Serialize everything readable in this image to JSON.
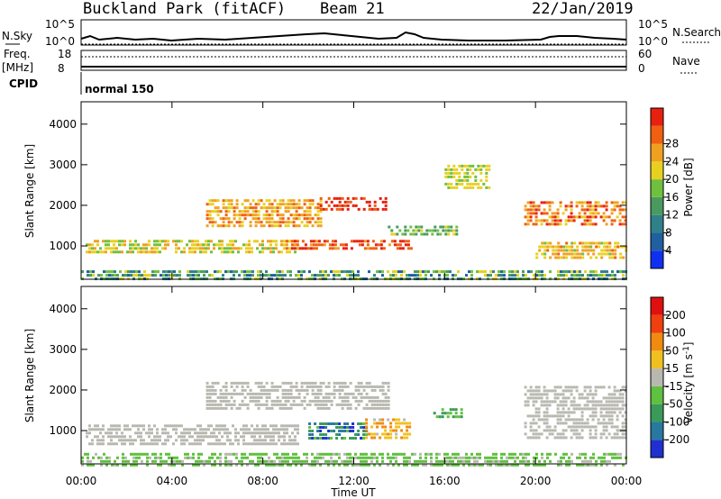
{
  "header": {
    "title": "Buckland Park (fitACF)",
    "beam": "Beam 21",
    "date": "22/Jan/2019"
  },
  "strips": {
    "nsky_label": "N.Sky",
    "nsearch_label": "N.Search",
    "nsky_ticks": [
      "10^5",
      "10^0"
    ],
    "nsearch_ticks": [
      "10^5",
      "10^0"
    ],
    "freq_label": "Freq.",
    "freq_unit": "[MHz]",
    "freq_ticks": [
      "18",
      "8"
    ],
    "nave_label": "Nave",
    "nave_ticks": [
      "60",
      "0"
    ],
    "cpid_label": "CPID",
    "cpid_value": "normal 150"
  },
  "axes": {
    "ylabel": "Slant Range [km]",
    "xlabel": "Time UT",
    "y_ticks": [
      "1000",
      "2000",
      "3000",
      "4000"
    ],
    "x_ticks": [
      "00:00",
      "04:00",
      "08:00",
      "12:00",
      "16:00",
      "20:00",
      "00:00"
    ]
  },
  "power_scale": {
    "label": "Power [dB]",
    "ticks": [
      "4",
      "8",
      "12",
      "16",
      "20",
      "24",
      "28"
    ],
    "colors": [
      "#1030f0",
      "#2060a0",
      "#30808a",
      "#4a9a60",
      "#70c040",
      "#e8d020",
      "#f0a020",
      "#f06010",
      "#e82010"
    ]
  },
  "velocity_scale": {
    "label": "Velocity [m s^-1]",
    "ticks": [
      "200",
      "100",
      "50",
      "15",
      "-15",
      "-50",
      "-100",
      "-200"
    ],
    "colors": [
      "#2030d0",
      "#2878a0",
      "#3a9a5a",
      "#60c040",
      "#b8b8b0",
      "#f0c020",
      "#f08a10",
      "#f04010",
      "#e01010"
    ]
  },
  "chart_data": [
    {
      "type": "heatmap",
      "title": "Power [dB]",
      "xlabel": "Time UT",
      "ylabel": "Slant Range [km]",
      "xlim": [
        0,
        24
      ],
      "ylim": [
        180,
        4550
      ],
      "clim": [
        0,
        30
      ],
      "bands": [
        {
          "t0": 0.2,
          "t1": 9.5,
          "r0": 800,
          "r1": 1150,
          "v0": 14,
          "v1": 22
        },
        {
          "t0": 9.0,
          "t1": 14.5,
          "r0": 900,
          "r1": 1150,
          "v0": 22,
          "v1": 29
        },
        {
          "t0": 5.5,
          "t1": 10.5,
          "r0": 1500,
          "r1": 2150,
          "v0": 18,
          "v1": 25
        },
        {
          "t0": 10.5,
          "t1": 13.5,
          "r0": 1850,
          "r1": 2200,
          "v0": 25,
          "v1": 30
        },
        {
          "t0": 13.5,
          "t1": 16.5,
          "r0": 1300,
          "r1": 1500,
          "v0": 10,
          "v1": 18
        },
        {
          "t0": 16.0,
          "t1": 18.0,
          "r0": 2400,
          "r1": 3000,
          "v0": 14,
          "v1": 20
        },
        {
          "t0": 19.5,
          "t1": 24.0,
          "r0": 1500,
          "r1": 2100,
          "v0": 18,
          "v1": 29
        },
        {
          "t0": 20.0,
          "t1": 24.0,
          "r0": 700,
          "r1": 1100,
          "v0": 16,
          "v1": 24
        },
        {
          "t0": 0.0,
          "t1": 24.0,
          "r0": 180,
          "r1": 400,
          "v0": 4,
          "v1": 20
        }
      ]
    },
    {
      "type": "heatmap",
      "title": "Velocity [m s^-1]",
      "xlabel": "Time UT",
      "ylabel": "Slant Range [km]",
      "xlim": [
        0,
        24
      ],
      "ylim": [
        180,
        4550
      ],
      "clim": [
        -200,
        200
      ],
      "bands": [
        {
          "t0": 0.2,
          "t1": 9.5,
          "r0": 700,
          "r1": 1150,
          "v0": -15,
          "v1": 15
        },
        {
          "t0": 5.5,
          "t1": 13.5,
          "r0": 1500,
          "r1": 2200,
          "v0": -15,
          "v1": 15
        },
        {
          "t0": 10.0,
          "t1": 12.5,
          "r0": 800,
          "r1": 1200,
          "v0": -200,
          "v1": -50
        },
        {
          "t0": 12.5,
          "t1": 14.5,
          "r0": 800,
          "r1": 1300,
          "v0": 15,
          "v1": 100
        },
        {
          "t0": 15.5,
          "t1": 16.8,
          "r0": 1300,
          "r1": 1550,
          "v0": -100,
          "v1": -50
        },
        {
          "t0": 19.5,
          "t1": 24.0,
          "r0": 800,
          "r1": 2100,
          "v0": -15,
          "v1": 15
        },
        {
          "t0": 0.0,
          "t1": 24.0,
          "r0": 180,
          "r1": 450,
          "v0": -50,
          "v1": -15
        }
      ]
    }
  ]
}
